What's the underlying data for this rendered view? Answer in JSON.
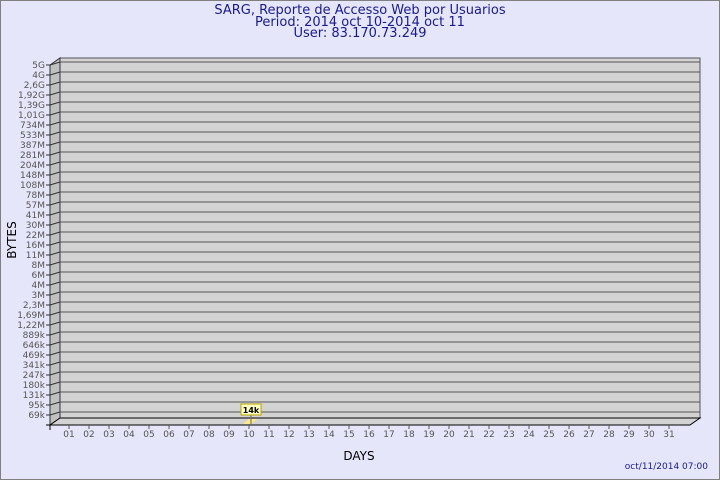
{
  "title": {
    "line1": "SARG, Reporte de Accesso Web por Usuarios",
    "line2": "Period: 2014 oct 10-2014 oct 11",
    "line3": "User: 83.170.73.249"
  },
  "timestamp": "oct/11/2014 07:00",
  "chart_data": {
    "type": "bar",
    "xlabel": "DAYS",
    "ylabel": "BYTES",
    "y_scale": "log",
    "grid": true,
    "y_tick_labels": [
      "5G",
      "4G",
      "2,6G",
      "1,92G",
      "1,39G",
      "1,01G",
      "734M",
      "533M",
      "387M",
      "281M",
      "204M",
      "148M",
      "108M",
      "78M",
      "57M",
      "41M",
      "30M",
      "22M",
      "16M",
      "11M",
      "8M",
      "6M",
      "4M",
      "3M",
      "2,3M",
      "1,69M",
      "1,22M",
      "889k",
      "646k",
      "469k",
      "341k",
      "247k",
      "180k",
      "131k",
      "95k",
      "69k"
    ],
    "categories": [
      "01",
      "02",
      "03",
      "04",
      "05",
      "06",
      "07",
      "08",
      "09",
      "10",
      "11",
      "12",
      "13",
      "14",
      "15",
      "16",
      "17",
      "18",
      "19",
      "20",
      "21",
      "22",
      "23",
      "24",
      "25",
      "26",
      "27",
      "28",
      "29",
      "30",
      "31"
    ],
    "bars": [
      {
        "day": "10",
        "value": 14000,
        "label": "14k"
      }
    ],
    "colors": {
      "bar": "#ffe88a",
      "wall": "#d3d3d3",
      "background": "#e6e6fa",
      "title": "#1a1a8c"
    }
  }
}
